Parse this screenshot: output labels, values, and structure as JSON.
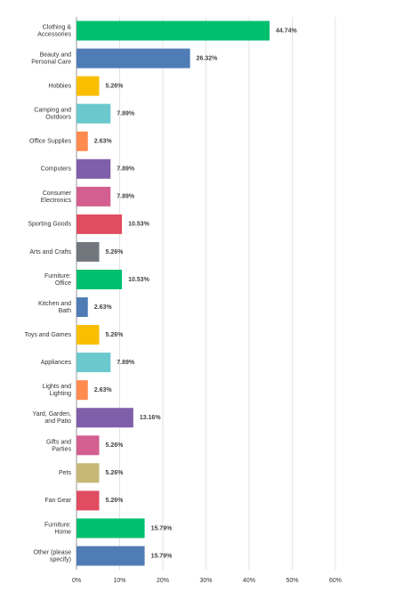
{
  "chart_data": {
    "type": "bar",
    "orientation": "horizontal",
    "categories": [
      "Clothing &\nAccessories",
      "Beauty and\nPersonal Care",
      "Hobbies",
      "Camping and\nOutdoors",
      "Office Supplies",
      "Computers",
      "Consumer\nElectronics",
      "Sporting Goods",
      "Arts and Crafts",
      "Furniture:\nOffice",
      "Kitchen and\nBath",
      "Toys and Games",
      "Appliances",
      "Lights and\nLighting",
      "Yard, Garden,\nand Patio",
      "Gifts and\nParties",
      "Pets",
      "Fan Gear",
      "Furniture:\nHome",
      "Other (please\nspecify)"
    ],
    "values": [
      44.74,
      26.32,
      5.26,
      7.89,
      2.63,
      7.89,
      7.89,
      10.53,
      5.26,
      10.53,
      2.63,
      5.26,
      7.89,
      2.63,
      13.16,
      5.26,
      5.26,
      5.26,
      15.79,
      15.79
    ],
    "value_labels": [
      "44.74%",
      "26.32%",
      "5.26%",
      "7.89%",
      "2.63%",
      "7.89%",
      "7.89%",
      "10.53%",
      "5.26%",
      "10.53%",
      "2.63%",
      "5.26%",
      "7.89%",
      "2.63%",
      "13.16%",
      "5.26%",
      "5.26%",
      "5.26%",
      "15.79%",
      "15.79%"
    ],
    "colors": [
      "#00bf6f",
      "#507cb6",
      "#f9be00",
      "#6bc8cd",
      "#ff8b4f",
      "#7f5fa9",
      "#d25f90",
      "#e04c60",
      "#71777d",
      "#00bf6f",
      "#507cb6",
      "#f9be00",
      "#6bc8cd",
      "#ff8b4f",
      "#7f5fa9",
      "#d25f90",
      "#c8b878",
      "#e04c60",
      "#00bf6f",
      "#507cb6"
    ],
    "xlim": [
      0,
      60
    ],
    "xticks": [
      {
        "value": 0,
        "label": "0%"
      },
      {
        "value": 10,
        "label": "10%"
      },
      {
        "value": 20,
        "label": "20%"
      },
      {
        "value": 30,
        "label": "30%"
      },
      {
        "value": 40,
        "label": "40%"
      },
      {
        "value": 50,
        "label": "50%"
      },
      {
        "value": 60,
        "label": "60%"
      }
    ],
    "grid": true
  }
}
